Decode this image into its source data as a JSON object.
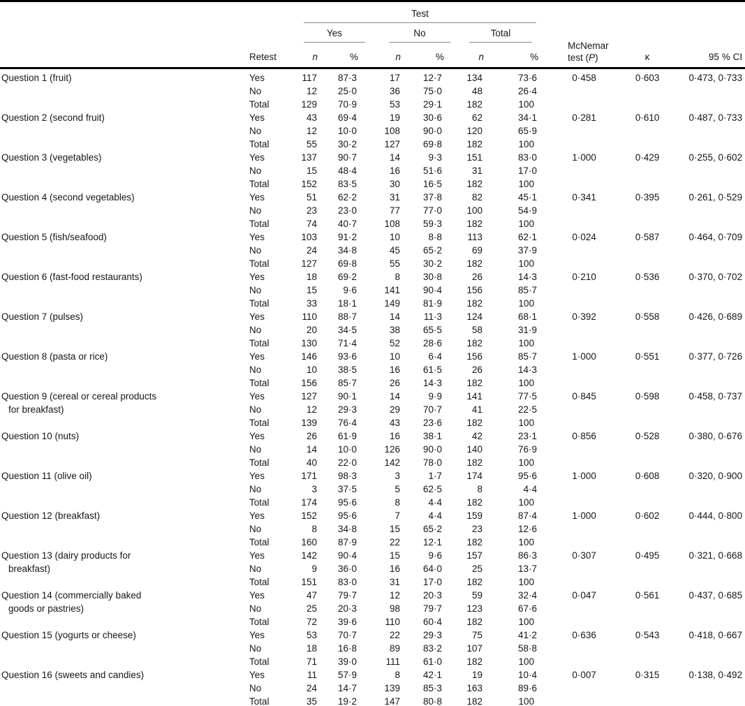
{
  "header": {
    "test": "Test",
    "yes": "Yes",
    "no": "No",
    "total": "Total",
    "retest": "Retest",
    "n": "n",
    "pct": "%",
    "mcnemar_line1": "McNemar",
    "mcnemar_pre": "test (",
    "mcnemar_p": "P",
    "mcnemar_post": ")",
    "kappa": "κ",
    "ci": "95 % CI"
  },
  "style_tokens": {
    "rule_gray": "#8a8a8a",
    "rule_black": "#000000",
    "text_color": "#161616",
    "background": "#ffffff"
  },
  "questions": [
    {
      "label_lines": [
        "Question 1 (fruit)"
      ],
      "mcnemar": "0·458",
      "kappa": "0·603",
      "ci": "0·473, 0·733",
      "rows": [
        {
          "retest": "Yes",
          "cells": [
            "117",
            "87·3",
            "17",
            "12·7",
            "134",
            "73·6"
          ]
        },
        {
          "retest": "No",
          "cells": [
            "12",
            "25·0",
            "36",
            "75·0",
            "48",
            "26·4"
          ]
        },
        {
          "retest": "Total",
          "cells": [
            "129",
            "70·9",
            "53",
            "29·1",
            "182",
            "100"
          ]
        }
      ]
    },
    {
      "label_lines": [
        "Question 2 (second fruit)"
      ],
      "mcnemar": "0·281",
      "kappa": "0·610",
      "ci": "0·487, 0·733",
      "rows": [
        {
          "retest": "Yes",
          "cells": [
            "43",
            "69·4",
            "19",
            "30·6",
            "62",
            "34·1"
          ]
        },
        {
          "retest": "No",
          "cells": [
            "12",
            "10·0",
            "108",
            "90·0",
            "120",
            "65·9"
          ]
        },
        {
          "retest": "Total",
          "cells": [
            "55",
            "30·2",
            "127",
            "69·8",
            "182",
            "100"
          ]
        }
      ]
    },
    {
      "label_lines": [
        "Question 3 (vegetables)"
      ],
      "mcnemar": "1·000",
      "kappa": "0·429",
      "ci": "0·255, 0·602",
      "rows": [
        {
          "retest": "Yes",
          "cells": [
            "137",
            "90·7",
            "14",
            "9·3",
            "151",
            "83·0"
          ]
        },
        {
          "retest": "No",
          "cells": [
            "15",
            "48·4",
            "16",
            "51·6",
            "31",
            "17·0"
          ]
        },
        {
          "retest": "Total",
          "cells": [
            "152",
            "83·5",
            "30",
            "16·5",
            "182",
            "100"
          ]
        }
      ]
    },
    {
      "label_lines": [
        "Question 4 (second vegetables)"
      ],
      "mcnemar": "0·341",
      "kappa": "0·395",
      "ci": "0·261, 0·529",
      "rows": [
        {
          "retest": "Yes",
          "cells": [
            "51",
            "62·2",
            "31",
            "37·8",
            "82",
            "45·1"
          ]
        },
        {
          "retest": "No",
          "cells": [
            "23",
            "23·0",
            "77",
            "77·0",
            "100",
            "54·9"
          ]
        },
        {
          "retest": "Total",
          "cells": [
            "74",
            "40·7",
            "108",
            "59·3",
            "182",
            "100"
          ]
        }
      ]
    },
    {
      "label_lines": [
        "Question 5 (fish/seafood)"
      ],
      "mcnemar": "0·024",
      "kappa": "0·587",
      "ci": "0·464, 0·709",
      "rows": [
        {
          "retest": "Yes",
          "cells": [
            "103",
            "91·2",
            "10",
            "8·8",
            "113",
            "62·1"
          ]
        },
        {
          "retest": "No",
          "cells": [
            "24",
            "34·8",
            "45",
            "65·2",
            "69",
            "37·9"
          ]
        },
        {
          "retest": "Total",
          "cells": [
            "127",
            "69·8",
            "55",
            "30·2",
            "182",
            "100"
          ]
        }
      ]
    },
    {
      "label_lines": [
        "Question 6 (fast-food restaurants)"
      ],
      "mcnemar": "0·210",
      "kappa": "0·536",
      "ci": "0·370, 0·702",
      "rows": [
        {
          "retest": "Yes",
          "cells": [
            "18",
            "69·2",
            "8",
            "30·8",
            "26",
            "14·3"
          ]
        },
        {
          "retest": "No",
          "cells": [
            "15",
            "9·6",
            "141",
            "90·4",
            "156",
            "85·7"
          ]
        },
        {
          "retest": "Total",
          "cells": [
            "33",
            "18·1",
            "149",
            "81·9",
            "182",
            "100"
          ]
        }
      ]
    },
    {
      "label_lines": [
        "Question 7 (pulses)"
      ],
      "mcnemar": "0·392",
      "kappa": "0·558",
      "ci": "0·426, 0·689",
      "rows": [
        {
          "retest": "Yes",
          "cells": [
            "110",
            "88·7",
            "14",
            "11·3",
            "124",
            "68·1"
          ]
        },
        {
          "retest": "No",
          "cells": [
            "20",
            "34·5",
            "38",
            "65·5",
            "58",
            "31·9"
          ]
        },
        {
          "retest": "Total",
          "cells": [
            "130",
            "71·4",
            "52",
            "28·6",
            "182",
            "100"
          ]
        }
      ]
    },
    {
      "label_lines": [
        "Question 8 (pasta or rice)"
      ],
      "mcnemar": "1·000",
      "kappa": "0·551",
      "ci": "0·377, 0·726",
      "rows": [
        {
          "retest": "Yes",
          "cells": [
            "146",
            "93·6",
            "10",
            "6·4",
            "156",
            "85·7"
          ]
        },
        {
          "retest": "No",
          "cells": [
            "10",
            "38·5",
            "16",
            "61·5",
            "26",
            "14·3"
          ]
        },
        {
          "retest": "Total",
          "cells": [
            "156",
            "85·7",
            "26",
            "14·3",
            "182",
            "100"
          ]
        }
      ]
    },
    {
      "label_lines": [
        "Question 9 (cereal or cereal products",
        "for breakfast)"
      ],
      "mcnemar": "0·845",
      "kappa": "0·598",
      "ci": "0·458, 0·737",
      "rows": [
        {
          "retest": "Yes",
          "cells": [
            "127",
            "90·1",
            "14",
            "9·9",
            "141",
            "77·5"
          ]
        },
        {
          "retest": "No",
          "cells": [
            "12",
            "29·3",
            "29",
            "70·7",
            "41",
            "22·5"
          ]
        },
        {
          "retest": "Total",
          "cells": [
            "139",
            "76·4",
            "43",
            "23·6",
            "182",
            "100"
          ]
        }
      ]
    },
    {
      "label_lines": [
        "Question 10 (nuts)"
      ],
      "mcnemar": "0·856",
      "kappa": "0·528",
      "ci": "0·380, 0·676",
      "rows": [
        {
          "retest": "Yes",
          "cells": [
            "26",
            "61·9",
            "16",
            "38·1",
            "42",
            "23·1"
          ]
        },
        {
          "retest": "No",
          "cells": [
            "14",
            "10·0",
            "126",
            "90·0",
            "140",
            "76·9"
          ]
        },
        {
          "retest": "Total",
          "cells": [
            "40",
            "22·0",
            "142",
            "78·0",
            "182",
            "100"
          ]
        }
      ]
    },
    {
      "label_lines": [
        "Question 11 (olive oil)"
      ],
      "mcnemar": "1·000",
      "kappa": "0·608",
      "ci": "0·320, 0·900",
      "rows": [
        {
          "retest": "Yes",
          "cells": [
            "171",
            "98·3",
            "3",
            "1·7",
            "174",
            "95·6"
          ]
        },
        {
          "retest": "No",
          "cells": [
            "3",
            "37·5",
            "5",
            "62·5",
            "8",
            "4·4"
          ]
        },
        {
          "retest": "Total",
          "cells": [
            "174",
            "95·6",
            "8",
            "4·4",
            "182",
            "100"
          ]
        }
      ]
    },
    {
      "label_lines": [
        "Question 12 (breakfast)"
      ],
      "mcnemar": "1·000",
      "kappa": "0·602",
      "ci": "0·444, 0·800",
      "rows": [
        {
          "retest": "Yes",
          "cells": [
            "152",
            "95·6",
            "7",
            "4·4",
            "159",
            "87·4"
          ]
        },
        {
          "retest": "No",
          "cells": [
            "8",
            "34·8",
            "15",
            "65·2",
            "23",
            "12·6"
          ]
        },
        {
          "retest": "Total",
          "cells": [
            "160",
            "87·9",
            "22",
            "12·1",
            "182",
            "100"
          ]
        }
      ]
    },
    {
      "label_lines": [
        "Question 13 (dairy products for",
        "breakfast)"
      ],
      "mcnemar": "0·307",
      "kappa": "0·495",
      "ci": "0·321, 0·668",
      "rows": [
        {
          "retest": "Yes",
          "cells": [
            "142",
            "90·4",
            "15",
            "9·6",
            "157",
            "86·3"
          ]
        },
        {
          "retest": "No",
          "cells": [
            "9",
            "36·0",
            "16",
            "64·0",
            "25",
            "13·7"
          ]
        },
        {
          "retest": "Total",
          "cells": [
            "151",
            "83·0",
            "31",
            "17·0",
            "182",
            "100"
          ]
        }
      ]
    },
    {
      "label_lines": [
        "Question 14 (commercially baked",
        "goods or pastries)"
      ],
      "mcnemar": "0·047",
      "kappa": "0·561",
      "ci": "0·437, 0·685",
      "rows": [
        {
          "retest": "Yes",
          "cells": [
            "47",
            "79·7",
            "12",
            "20·3",
            "59",
            "32·4"
          ]
        },
        {
          "retest": "No",
          "cells": [
            "25",
            "20·3",
            "98",
            "79·7",
            "123",
            "67·6"
          ]
        },
        {
          "retest": "Total",
          "cells": [
            "72",
            "39·6",
            "110",
            "60·4",
            "182",
            "100"
          ]
        }
      ]
    },
    {
      "label_lines": [
        "Question 15 (yogurts or cheese)"
      ],
      "mcnemar": "0·636",
      "kappa": "0·543",
      "ci": "0·418, 0·667",
      "rows": [
        {
          "retest": "Yes",
          "cells": [
            "53",
            "70·7",
            "22",
            "29·3",
            "75",
            "41·2"
          ]
        },
        {
          "retest": "No",
          "cells": [
            "18",
            "16·8",
            "89",
            "83·2",
            "107",
            "58·8"
          ]
        },
        {
          "retest": "Total",
          "cells": [
            "71",
            "39·0",
            "111",
            "61·0",
            "182",
            "100"
          ]
        }
      ]
    },
    {
      "label_lines": [
        "Question 16 (sweets and candies)"
      ],
      "mcnemar": "0·007",
      "kappa": "0·315",
      "ci": "0·138, 0·492",
      "rows": [
        {
          "retest": "Yes",
          "cells": [
            "11",
            "57·9",
            "8",
            "42·1",
            "19",
            "10·4"
          ]
        },
        {
          "retest": "No",
          "cells": [
            "24",
            "14·7",
            "139",
            "85·3",
            "163",
            "89·6"
          ]
        },
        {
          "retest": "Total",
          "cells": [
            "35",
            "19·2",
            "147",
            "80·8",
            "182",
            "100"
          ]
        }
      ]
    }
  ]
}
